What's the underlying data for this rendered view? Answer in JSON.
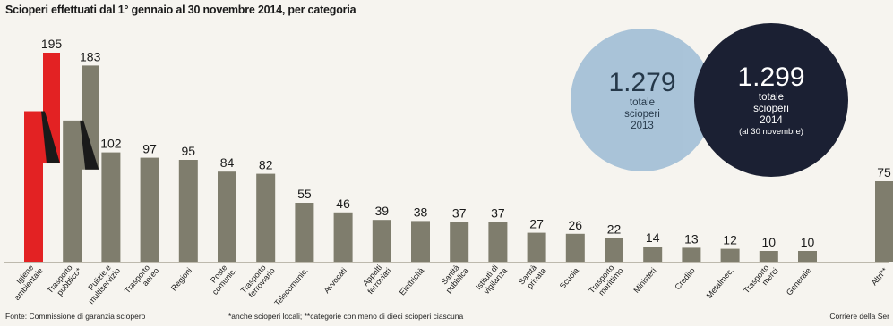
{
  "title": "Scioperi effettuati dal 1° gennaio al 30 novembre 2014, per categoria",
  "bubbles": {
    "y2013": {
      "value": "1.279",
      "line1": "totale",
      "line2": "scioperi",
      "line3": "2013"
    },
    "y2014": {
      "value": "1.299",
      "line1": "totale",
      "line2": "scioperi",
      "line3": "2014",
      "line4": "(al 30 novembre)"
    }
  },
  "footer": {
    "source": "Fonte: Commissione di garanzia sciopero",
    "note": "*anche scioperi locali; **categorie con meno di dieci scioperi ciascuna",
    "credit": "Corriere della Ser"
  },
  "colors": {
    "bar": "#7f7d6d",
    "highlight": "#e32223",
    "background": "#f6f4ef",
    "text": "#1a1a1a"
  },
  "chart_data": {
    "type": "bar",
    "title": "Scioperi effettuati dal 1° gennaio al 30 novembre 2014, per categoria",
    "categories": [
      "Igiene ambientale",
      "Trasporto pubblico*",
      "Pulizie e multiservizio",
      "Trasporto aereo",
      "Regioni",
      "Poste comunic.",
      "Trasporto ferroviario",
      "Telecomunic.",
      "Avvocati",
      "Appalti ferroviari",
      "Elettricità",
      "Sanità pubblica",
      "Istituti di vigilanza",
      "Sanità privata",
      "Scuola",
      "Trasporto marittimo",
      "Ministeri",
      "Credito",
      "Metalmec.",
      "Trasporto merci",
      "Generale",
      "Altri**"
    ],
    "values": [
      195,
      183,
      102,
      97,
      95,
      84,
      82,
      55,
      46,
      39,
      38,
      37,
      37,
      27,
      26,
      22,
      14,
      13,
      12,
      10,
      10,
      75
    ],
    "highlight_index": 0,
    "ylim": [
      0,
      200
    ],
    "grid": false,
    "legend": "none",
    "xlabel": "",
    "ylabel": ""
  }
}
